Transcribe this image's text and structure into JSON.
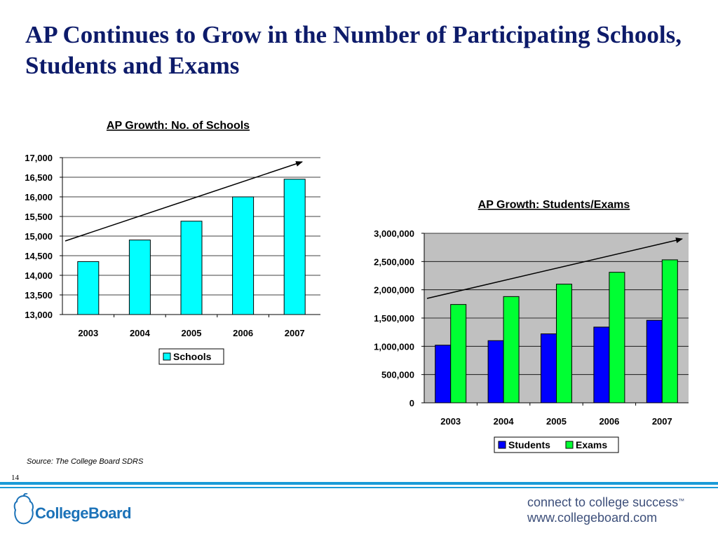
{
  "slide": {
    "title": "AP Continues to Grow in the Number of Participating Schools, Students and Exams",
    "source": "Source: The College Board SDRS",
    "page_number": "14",
    "logo_text": "CollegeBoard",
    "tagline_line1": "connect to college success",
    "tagline_tm": "™",
    "tagline_line2": "www.collegeboard.com"
  },
  "colors": {
    "title": "#0d1b6a",
    "schools": "#00ffff",
    "students": "#0000ff",
    "exams": "#00ff33",
    "plot_bg_students": "#c0c0c0",
    "footer_rule": "#1a9bd7"
  },
  "chart_data": [
    {
      "type": "bar",
      "title": "AP Growth: No. of Schools",
      "categories": [
        "2003",
        "2004",
        "2005",
        "2006",
        "2007"
      ],
      "series": [
        {
          "name": "Schools",
          "values": [
            14350,
            14900,
            15380,
            16000,
            16450
          ]
        }
      ],
      "ylim": [
        13000,
        17000
      ],
      "yticks": [
        "13,000",
        "13,500",
        "14,000",
        "14,500",
        "15,000",
        "15,500",
        "16,000",
        "16,500",
        "17,000"
      ],
      "grid": true,
      "legend": "bottom",
      "annotation": "trend arrow"
    },
    {
      "type": "bar",
      "title": "AP Growth: Students/Exams",
      "categories": [
        "2003",
        "2004",
        "2005",
        "2006",
        "2007"
      ],
      "series": [
        {
          "name": "Students",
          "values": [
            1020000,
            1100000,
            1220000,
            1340000,
            1460000
          ]
        },
        {
          "name": "Exams",
          "values": [
            1740000,
            1880000,
            2100000,
            2310000,
            2530000
          ]
        }
      ],
      "ylim": [
        0,
        3000000
      ],
      "yticks": [
        "0",
        "500,000",
        "1,000,000",
        "1,500,000",
        "2,000,000",
        "2,500,000",
        "3,000,000"
      ],
      "grid": true,
      "legend": "bottom",
      "annotation": "trend arrow"
    }
  ]
}
